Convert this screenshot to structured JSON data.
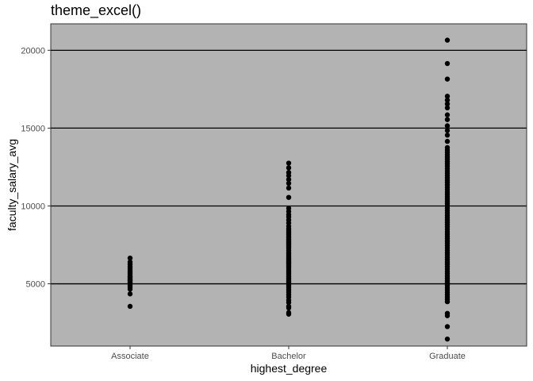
{
  "chart_data": {
    "type": "scatter",
    "title": "theme_excel()",
    "xlabel": "highest_degree",
    "ylabel": "faculty_salary_avg",
    "categories": [
      "Associate",
      "Bachelor",
      "Graduate"
    ],
    "ylim": [
      1000,
      21700
    ],
    "yticks": [
      5000,
      10000,
      15000,
      20000
    ],
    "grid": "horizontal major lines",
    "colors": {
      "panel": "#b3b3b3",
      "grid": "#000000",
      "point": "#000000",
      "text": "#4d4d4d"
    },
    "series": [
      {
        "category": "Associate",
        "values": [
          3550,
          4350,
          4650,
          4750,
          4850,
          4950,
          5050,
          5100,
          5200,
          5250,
          5300,
          5400,
          5450,
          5500,
          5600,
          5700,
          5800,
          5900,
          6000,
          6100,
          6250,
          6400,
          6650
        ]
      },
      {
        "category": "Bachelor",
        "values": [
          3050,
          3150,
          3450,
          3550,
          3800,
          3950,
          4150,
          4300,
          4450,
          4550,
          4650,
          4750,
          4850,
          4950,
          5050,
          5150,
          5250,
          5350,
          5450,
          5550,
          5650,
          5750,
          5850,
          5950,
          6050,
          6150,
          6250,
          6350,
          6450,
          6550,
          6650,
          6750,
          6850,
          6950,
          7050,
          7150,
          7250,
          7350,
          7450,
          7550,
          7650,
          7750,
          7850,
          7950,
          8050,
          8150,
          8250,
          8350,
          8450,
          8550,
          8700,
          8900,
          9100,
          9300,
          9450,
          9650,
          9850,
          10550,
          11150,
          11450,
          11700,
          11950,
          12150,
          12450,
          12750
        ]
      },
      {
        "category": "Graduate",
        "values": [
          1450,
          2250,
          2950,
          3100,
          3850,
          4000,
          4150,
          4300,
          4450,
          4600,
          4750,
          4900,
          5050,
          5200,
          5350,
          5500,
          5650,
          5800,
          5950,
          6100,
          6250,
          6400,
          6550,
          6700,
          6850,
          7000,
          7150,
          7300,
          7450,
          7600,
          7750,
          7900,
          8050,
          8200,
          8350,
          8500,
          8650,
          8800,
          8950,
          9100,
          9250,
          9400,
          9550,
          9700,
          9850,
          10000,
          10150,
          10300,
          10450,
          10600,
          10750,
          10900,
          11050,
          11200,
          11350,
          11500,
          11650,
          11800,
          11950,
          12100,
          12250,
          12400,
          12550,
          12700,
          12850,
          13000,
          13150,
          13300,
          13450,
          13600,
          13750,
          14150,
          14550,
          14850,
          15150,
          15550,
          15850,
          16300,
          16550,
          16800,
          17050,
          18150,
          19150,
          20650
        ]
      }
    ]
  }
}
